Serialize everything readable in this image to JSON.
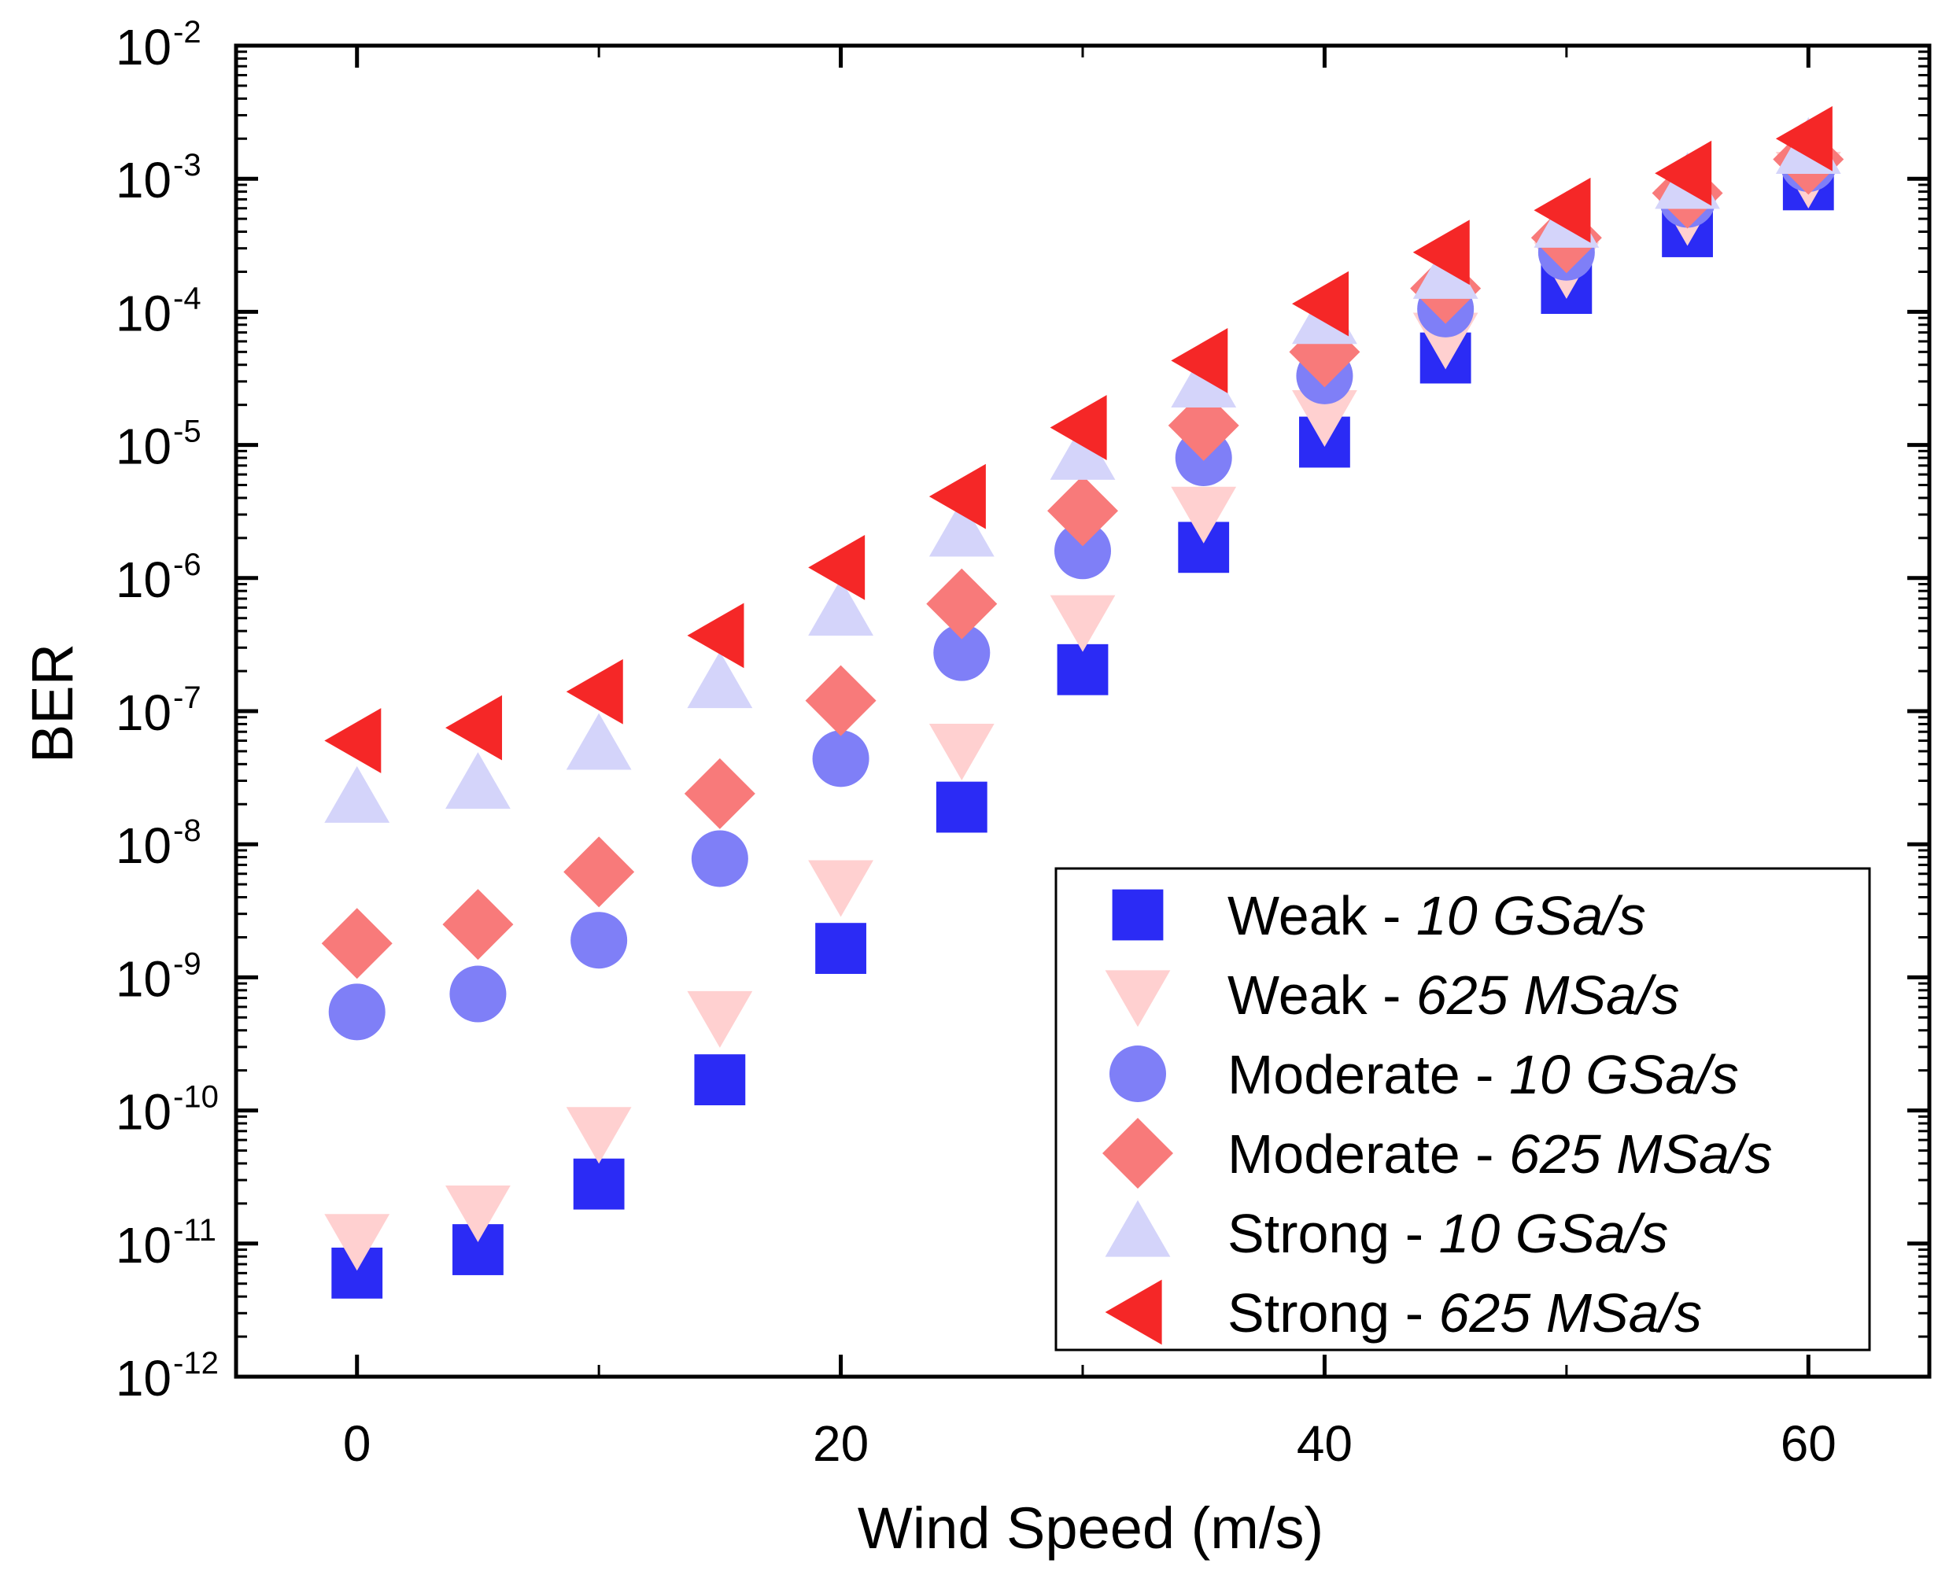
{
  "chart_data": {
    "type": "scatter",
    "title": "",
    "xlabel": "Wind Speed (m/s)",
    "ylabel": "BER",
    "xlim": [
      -5,
      65
    ],
    "ylim": [
      1e-12,
      0.01
    ],
    "yscale": "log",
    "x_ticks": [
      0,
      20,
      40,
      60
    ],
    "y_tick_exponents": [
      -12,
      -11,
      -10,
      -9,
      -8,
      -7,
      -6,
      -5,
      -4,
      -3,
      -2
    ],
    "y_tick_base": "10",
    "grid": false,
    "legend_position": "bottom-right",
    "x": [
      0,
      5,
      10,
      15,
      20,
      25,
      30,
      35,
      40,
      45,
      50,
      55,
      60
    ],
    "series": [
      {
        "name": "Weak - ",
        "name_rate": "10 GSa/s",
        "marker": "square",
        "color": "#2b2bf5",
        "values": [
          6e-12,
          9e-12,
          2.8e-11,
          1.7e-10,
          1.65e-09,
          1.9e-08,
          2.05e-07,
          1.7e-06,
          1.05e-05,
          4.5e-05,
          0.00015,
          0.0004,
          0.0009
        ]
      },
      {
        "name": "Weak - ",
        "name_rate": "625 MSa/s",
        "marker": "triangle-down",
        "color": "#ffd0d0",
        "values": [
          1.1e-11,
          1.8e-11,
          7e-11,
          5.2e-10,
          5e-09,
          5.3e-08,
          4.9e-07,
          3.2e-06,
          1.7e-05,
          6.5e-05,
          0.00022,
          0.00055,
          0.00105
        ]
      },
      {
        "name": "Moderate - ",
        "name_rate": "10 GSa/s",
        "marker": "circle",
        "color": "#7f7ff7",
        "values": [
          5.5e-10,
          7.5e-10,
          1.9e-09,
          7.8e-09,
          4.4e-08,
          2.75e-07,
          1.6e-06,
          8e-06,
          3.3e-05,
          0.000105,
          0.00028,
          0.0007,
          0.0013
        ]
      },
      {
        "name": "Moderate - ",
        "name_rate": "625 MSa/s",
        "marker": "diamond",
        "color": "#f87a7a",
        "values": [
          1.8e-09,
          2.5e-09,
          6.2e-09,
          2.4e-08,
          1.2e-07,
          6.4e-07,
          3.2e-06,
          1.4e-05,
          5e-05,
          0.00015,
          0.00036,
          0.00078,
          0.0014
        ]
      },
      {
        "name": "Strong - ",
        "name_rate": "10 GSa/s",
        "marker": "triangle-up",
        "color": "#d4d4fa",
        "values": [
          2.2e-08,
          2.8e-08,
          5.5e-08,
          1.6e-07,
          5.6e-07,
          2.2e-06,
          8.3e-06,
          2.9e-05,
          8.7e-05,
          0.00019,
          0.00046,
          0.0009,
          0.00165
        ]
      },
      {
        "name": "Strong - ",
        "name_rate": "625 MSa/s",
        "marker": "triangle-left",
        "color": "#f52727",
        "values": [
          6e-08,
          7.5e-08,
          1.4e-07,
          3.7e-07,
          1.2e-06,
          4.1e-06,
          1.35e-05,
          4.3e-05,
          0.000115,
          0.00028,
          0.00058,
          0.0011,
          0.002
        ]
      }
    ]
  }
}
